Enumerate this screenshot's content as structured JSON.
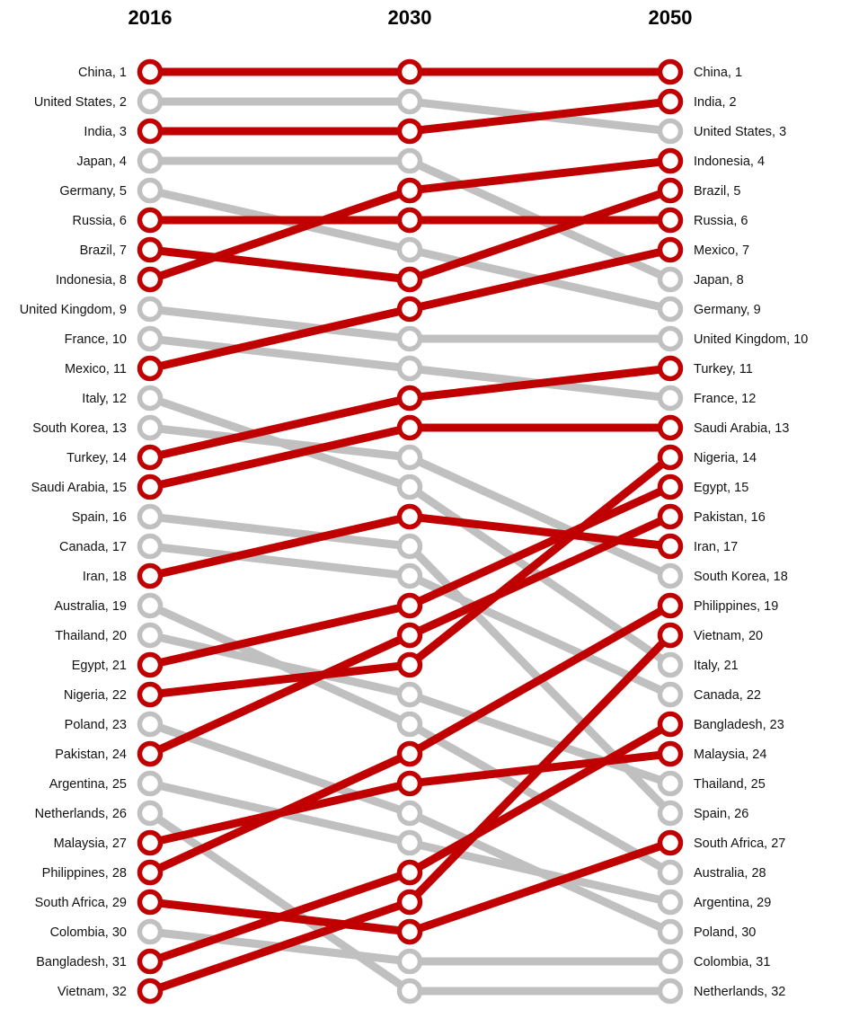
{
  "chart_data": {
    "type": "line",
    "chart_kind": "slope / bump chart of rankings",
    "columns": [
      "2016",
      "2030",
      "2050"
    ],
    "rank_range": [
      1,
      32
    ],
    "highlight_color": "#c00000",
    "muted_color": "#c0c0c0",
    "series": [
      {
        "name": "China",
        "ranks": [
          1,
          1,
          1
        ],
        "highlighted": true
      },
      {
        "name": "United States",
        "ranks": [
          2,
          2,
          3
        ],
        "highlighted": false
      },
      {
        "name": "India",
        "ranks": [
          3,
          3,
          2
        ],
        "highlighted": true
      },
      {
        "name": "Japan",
        "ranks": [
          4,
          4,
          8
        ],
        "highlighted": false
      },
      {
        "name": "Germany",
        "ranks": [
          5,
          7,
          9
        ],
        "highlighted": false
      },
      {
        "name": "Russia",
        "ranks": [
          6,
          6,
          6
        ],
        "highlighted": true
      },
      {
        "name": "Brazil",
        "ranks": [
          7,
          8,
          5
        ],
        "highlighted": true
      },
      {
        "name": "Indonesia",
        "ranks": [
          8,
          5,
          4
        ],
        "highlighted": true
      },
      {
        "name": "United Kingdom",
        "ranks": [
          9,
          10,
          10
        ],
        "highlighted": false
      },
      {
        "name": "France",
        "ranks": [
          10,
          11,
          12
        ],
        "highlighted": false
      },
      {
        "name": "Mexico",
        "ranks": [
          11,
          9,
          7
        ],
        "highlighted": true
      },
      {
        "name": "Italy",
        "ranks": [
          12,
          15,
          21
        ],
        "highlighted": false
      },
      {
        "name": "South Korea",
        "ranks": [
          13,
          14,
          18
        ],
        "highlighted": false
      },
      {
        "name": "Turkey",
        "ranks": [
          14,
          12,
          11
        ],
        "highlighted": true
      },
      {
        "name": "Saudi Arabia",
        "ranks": [
          15,
          13,
          13
        ],
        "highlighted": true
      },
      {
        "name": "Spain",
        "ranks": [
          16,
          17,
          26
        ],
        "highlighted": false
      },
      {
        "name": "Canada",
        "ranks": [
          17,
          18,
          22
        ],
        "highlighted": false
      },
      {
        "name": "Iran",
        "ranks": [
          18,
          16,
          17
        ],
        "highlighted": true
      },
      {
        "name": "Australia",
        "ranks": [
          19,
          23,
          28
        ],
        "highlighted": false
      },
      {
        "name": "Thailand",
        "ranks": [
          20,
          22,
          25
        ],
        "highlighted": false
      },
      {
        "name": "Egypt",
        "ranks": [
          21,
          19,
          15
        ],
        "highlighted": true
      },
      {
        "name": "Nigeria",
        "ranks": [
          22,
          21,
          14
        ],
        "highlighted": true
      },
      {
        "name": "Poland",
        "ranks": [
          23,
          26,
          30
        ],
        "highlighted": false
      },
      {
        "name": "Pakistan",
        "ranks": [
          24,
          20,
          16
        ],
        "highlighted": true
      },
      {
        "name": "Argentina",
        "ranks": [
          25,
          27,
          29
        ],
        "highlighted": false
      },
      {
        "name": "Netherlands",
        "ranks": [
          26,
          32,
          32
        ],
        "highlighted": false
      },
      {
        "name": "Malaysia",
        "ranks": [
          27,
          25,
          24
        ],
        "highlighted": true
      },
      {
        "name": "Philippines",
        "ranks": [
          28,
          24,
          19
        ],
        "highlighted": true
      },
      {
        "name": "South Africa",
        "ranks": [
          29,
          30,
          27
        ],
        "highlighted": true
      },
      {
        "name": "Colombia",
        "ranks": [
          30,
          31,
          31
        ],
        "highlighted": false
      },
      {
        "name": "Bangladesh",
        "ranks": [
          31,
          28,
          23
        ],
        "highlighted": true
      },
      {
        "name": "Vietnam",
        "ranks": [
          32,
          29,
          20
        ],
        "highlighted": true
      }
    ]
  }
}
